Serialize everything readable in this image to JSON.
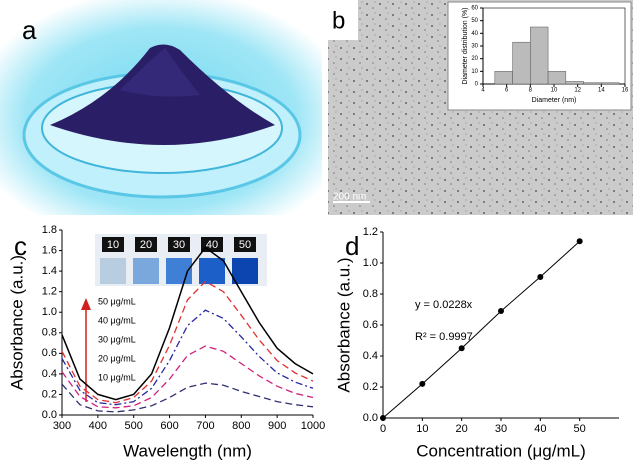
{
  "panel_labels": [
    "a",
    "b",
    "c",
    "d"
  ],
  "scale_bar": "200 nm",
  "vial_labels": [
    10,
    20,
    30,
    40,
    50
  ],
  "chart_data": [
    {
      "type": "histogram",
      "xlabel": "Diameter (nm)",
      "ylabel": "Diameter distribution (%)",
      "bins": [
        5,
        6.5,
        8,
        9.5,
        11,
        12.5,
        14,
        15.5
      ],
      "values": [
        10,
        33,
        45,
        10,
        2,
        1,
        1
      ],
      "color": "#bbbbbb",
      "xlim": [
        4,
        16
      ],
      "xticks": [
        4,
        6,
        8,
        10,
        12,
        14,
        16
      ],
      "ylim": [
        0,
        60
      ],
      "yticks": [
        0,
        10,
        20,
        30,
        40,
        50,
        60
      ]
    },
    {
      "type": "line",
      "xlabel": "Wavelength (nm)",
      "ylabel": "Absorbance (a.u.)",
      "x": [
        300,
        350,
        400,
        450,
        500,
        550,
        600,
        650,
        700,
        750,
        800,
        850,
        900,
        950,
        1000
      ],
      "series": [
        {
          "name": "50 μg/mL",
          "color": "#000000",
          "dash": "solid",
          "values": [
            0.78,
            0.35,
            0.2,
            0.15,
            0.2,
            0.4,
            0.85,
            1.4,
            1.63,
            1.5,
            1.2,
            0.9,
            0.65,
            0.5,
            0.4
          ]
        },
        {
          "name": "40 μg/mL",
          "color": "#e03030",
          "dash": "dashed",
          "values": [
            0.62,
            0.28,
            0.15,
            0.12,
            0.17,
            0.33,
            0.68,
            1.12,
            1.3,
            1.2,
            0.97,
            0.73,
            0.53,
            0.41,
            0.33
          ]
        },
        {
          "name": "30 μg/mL",
          "color": "#2828a0",
          "dash": "dashdot",
          "values": [
            0.55,
            0.24,
            0.12,
            0.1,
            0.13,
            0.26,
            0.53,
            0.87,
            1.02,
            0.94,
            0.76,
            0.57,
            0.41,
            0.32,
            0.26
          ]
        },
        {
          "name": "20 μg/mL",
          "color": "#d0207a",
          "dash": "dashed",
          "values": [
            0.42,
            0.18,
            0.08,
            0.07,
            0.09,
            0.17,
            0.35,
            0.58,
            0.67,
            0.62,
            0.5,
            0.38,
            0.28,
            0.21,
            0.17
          ]
        },
        {
          "name": "10 μg/mL",
          "color": "#303070",
          "dash": "dashed",
          "values": [
            0.3,
            0.1,
            0.04,
            0.03,
            0.05,
            0.09,
            0.17,
            0.27,
            0.31,
            0.29,
            0.23,
            0.18,
            0.13,
            0.1,
            0.08
          ]
        }
      ],
      "xlim": [
        300,
        1000
      ],
      "xticks": [
        300,
        400,
        500,
        600,
        700,
        800,
        900,
        1000
      ],
      "ylim": [
        0,
        1.8
      ],
      "yticks": [
        {
          "value": 0,
          "label": "0.0"
        },
        0.2,
        0.4,
        0.6,
        0.8,
        {
          "value": 1,
          "label": "1.0"
        },
        1.2,
        1.4,
        1.6,
        1.8
      ]
    },
    {
      "type": "scatter",
      "xlabel": "Concentration (μg/mL)",
      "ylabel": "Absorbance (a.u.)",
      "annotations": [
        "y = 0.0228x",
        "R² = 0.9997"
      ],
      "x": [
        0,
        10,
        20,
        30,
        40,
        50
      ],
      "values": [
        0,
        0.22,
        0.45,
        0.69,
        0.91,
        1.14
      ],
      "color": "#000000",
      "xlim": [
        0,
        60
      ],
      "xticks": [
        0,
        10,
        20,
        30,
        40,
        50
      ],
      "ylim": [
        0,
        1.2
      ],
      "yticks": [
        {
          "value": 0,
          "label": "0.0"
        },
        0.2,
        0.4,
        0.6,
        0.8,
        {
          "value": 1,
          "label": "1.0"
        },
        1.2
      ]
    }
  ]
}
